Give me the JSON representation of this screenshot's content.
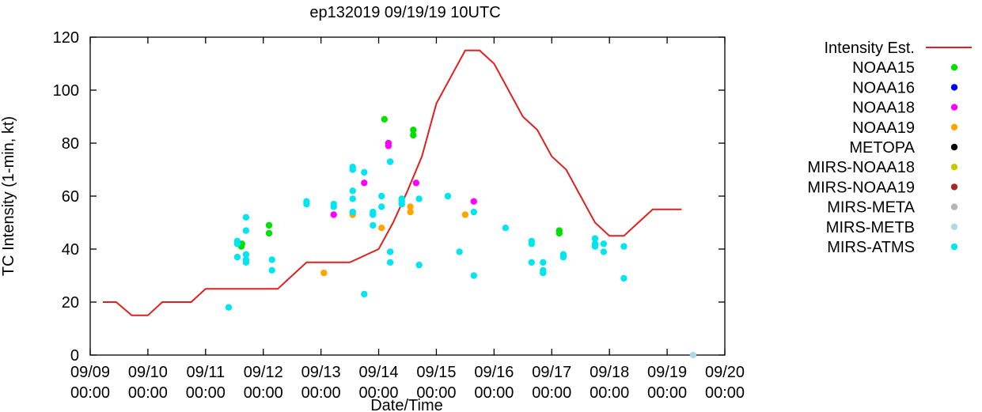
{
  "chart_data": {
    "type": "scatter",
    "title": "ep132019 09/19/19 10UTC",
    "xlabel": "Date/Time",
    "ylabel": "TC Intensity (1-min, kt)",
    "ylim": [
      0,
      120
    ],
    "yticks": [
      "0",
      "20",
      "40",
      "60",
      "80",
      "100",
      "120"
    ],
    "xlim": [
      0,
      11
    ],
    "xticks": [
      {
        "date": "09/09",
        "time": "00:00"
      },
      {
        "date": "09/10",
        "time": "00:00"
      },
      {
        "date": "09/11",
        "time": "00:00"
      },
      {
        "date": "09/12",
        "time": "00:00"
      },
      {
        "date": "09/13",
        "time": "00:00"
      },
      {
        "date": "09/14",
        "time": "00:00"
      },
      {
        "date": "09/15",
        "time": "00:00"
      },
      {
        "date": "09/16",
        "time": "00:00"
      },
      {
        "date": "09/17",
        "time": "00:00"
      },
      {
        "date": "09/18",
        "time": "00:00"
      },
      {
        "date": "09/19",
        "time": "00:00"
      },
      {
        "date": "09/20",
        "time": "00:00"
      }
    ],
    "legend_position": "outside-right",
    "line": {
      "name": "Intensity Est.",
      "color": "#e02020",
      "x": [
        0.22,
        0.45,
        0.72,
        1.0,
        1.25,
        1.5,
        1.75,
        2.0,
        2.5,
        3.0,
        3.25,
        3.5,
        3.75,
        4.0,
        4.5,
        5.0,
        5.25,
        5.5,
        5.75,
        6.0,
        6.25,
        6.5,
        6.75,
        7.0,
        7.25,
        7.5,
        7.75,
        8.0,
        8.25,
        8.5,
        8.75,
        9.0,
        9.25,
        9.5,
        9.75,
        10.0,
        10.25
      ],
      "y": [
        20,
        20,
        15,
        15,
        20,
        20,
        20,
        25,
        25,
        25,
        25,
        30,
        35,
        35,
        35,
        40,
        50,
        62,
        75,
        95,
        105,
        115,
        115,
        110,
        100,
        90,
        85,
        75,
        70,
        60,
        50,
        45,
        45,
        50,
        55,
        55,
        55
      ]
    },
    "series": [
      {
        "name": "NOAA15",
        "color": "#00e000",
        "x": [
          2.62,
          2.63,
          3.1,
          3.1,
          5.1,
          5.6,
          5.6,
          8.13,
          8.13
        ],
        "y": [
          41,
          42,
          49,
          46,
          89,
          85,
          83,
          47,
          46
        ]
      },
      {
        "name": "NOAA16",
        "color": "#0000ff",
        "x": [],
        "y": []
      },
      {
        "name": "NOAA18",
        "color": "#ff00ff",
        "x": [
          4.22,
          4.75,
          5.17,
          5.17,
          5.65,
          6.65
        ],
        "y": [
          53,
          65,
          80,
          79,
          65,
          58
        ]
      },
      {
        "name": "NOAA19",
        "color": "#ffa500",
        "x": [
          4.05,
          4.55,
          4.55,
          5.05,
          5.55,
          5.55,
          6.5
        ],
        "y": [
          31,
          54,
          53,
          48,
          56,
          54,
          53
        ]
      },
      {
        "name": "METOPA",
        "color": "#000000",
        "x": [],
        "y": []
      },
      {
        "name": "MIRS-NOAA18",
        "color": "#c8c800",
        "x": [],
        "y": []
      },
      {
        "name": "MIRS-NOAA19",
        "color": "#a52a2a",
        "x": [],
        "y": []
      },
      {
        "name": "MIRS-META",
        "color": "#b4b4b4",
        "x": [],
        "y": []
      },
      {
        "name": "MIRS-METB",
        "color": "#add8e6",
        "x": [
          10.45
        ],
        "y": [
          0
        ]
      },
      {
        "name": "MIRS-ATMS",
        "color": "#00e5ee",
        "x": [
          2.4,
          2.55,
          2.55,
          2.55,
          2.7,
          2.7,
          2.7,
          2.7,
          2.7,
          3.15,
          3.15,
          3.75,
          3.75,
          4.22,
          4.22,
          4.55,
          4.55,
          4.55,
          4.55,
          4.55,
          4.75,
          4.75,
          4.9,
          4.9,
          4.9,
          5.05,
          5.05,
          5.2,
          5.2,
          5.2,
          5.4,
          5.4,
          5.4,
          5.7,
          5.7,
          6.2,
          6.4,
          6.65,
          6.65,
          7.2,
          7.65,
          7.65,
          7.65,
          7.85,
          7.85,
          7.85,
          8.2,
          8.2,
          8.75,
          8.75,
          8.75,
          8.9,
          8.9,
          9.25,
          9.25
        ],
        "y": [
          18,
          43,
          42,
          37,
          52,
          47,
          38,
          36,
          35,
          36,
          32,
          58,
          57,
          57,
          56,
          71,
          70,
          62,
          59,
          54,
          69,
          23,
          54,
          53,
          49,
          60,
          56,
          73,
          39,
          35,
          59,
          58,
          57,
          59,
          34,
          60,
          39,
          54,
          30,
          48,
          43,
          42,
          35,
          35,
          32,
          31,
          38,
          37,
          44,
          42,
          41,
          42,
          39,
          41,
          29
        ]
      }
    ]
  }
}
